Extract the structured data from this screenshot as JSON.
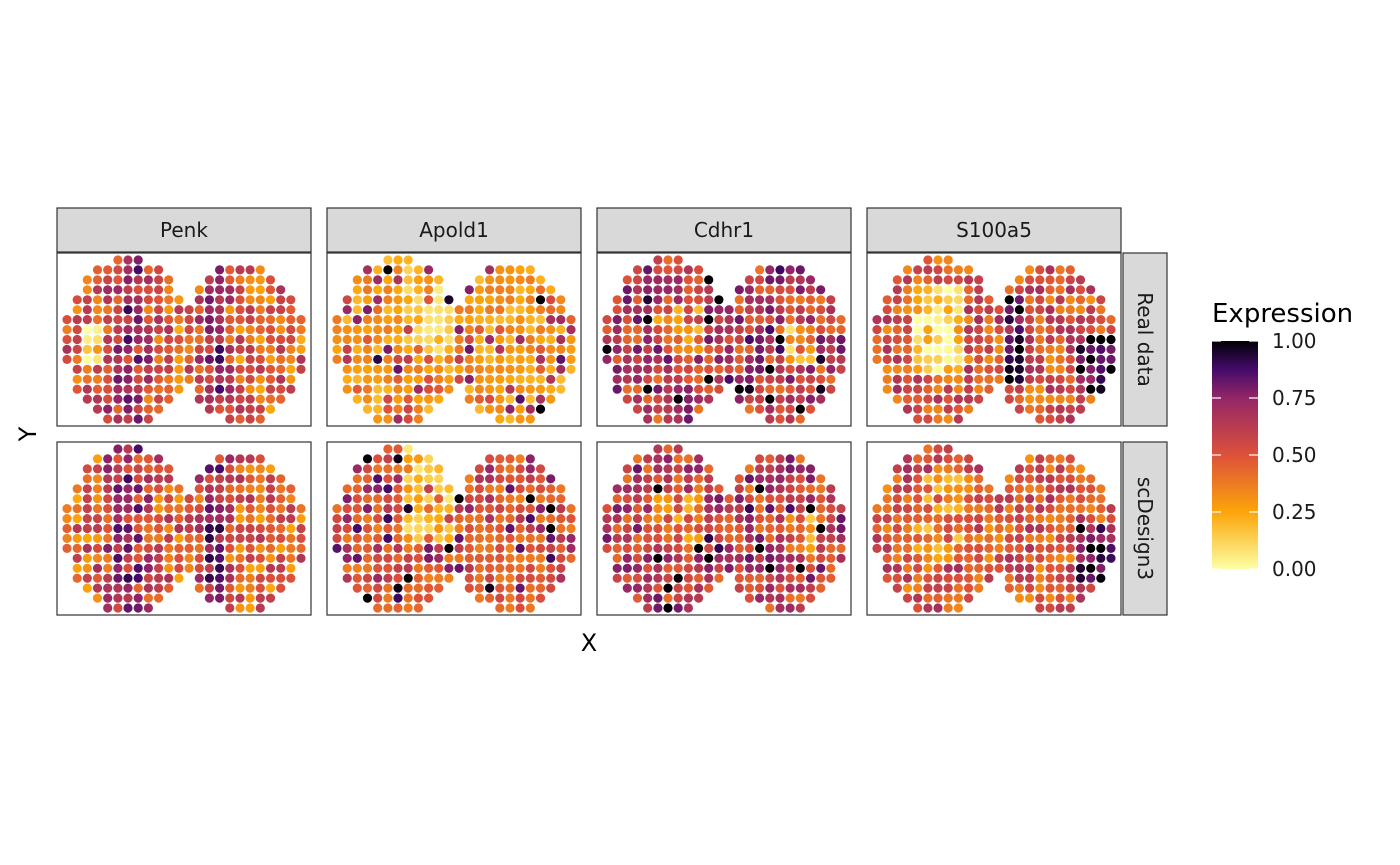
{
  "chart_data": {
    "type": "scatter",
    "title": "",
    "xlabel": "X",
    "ylabel": "Y",
    "facet_columns": [
      "Penk",
      "Apold1",
      "Cdhr1",
      "S100a5"
    ],
    "facet_rows": [
      "Real data",
      "scDesign3"
    ],
    "axis_ticks": false,
    "grid": false,
    "color_scale": {
      "title": "Expression",
      "palette": "inferno (reversed)",
      "range": [
        0,
        1
      ],
      "ticks": [
        "0.00",
        "0.25",
        "0.50",
        "0.75",
        "1.00"
      ],
      "stops": [
        "#fcffa4",
        "#fca50a",
        "#dd513a",
        "#932667",
        "#420a68",
        "#000004"
      ]
    },
    "spots_note": "About 300 spatial spots per panel arranged in a two-lobed (brain section) grid; each spot is coloured by normalised gene expression (0 to 1). Real data and scDesign3 simulation share the same spot layout."
  }
}
